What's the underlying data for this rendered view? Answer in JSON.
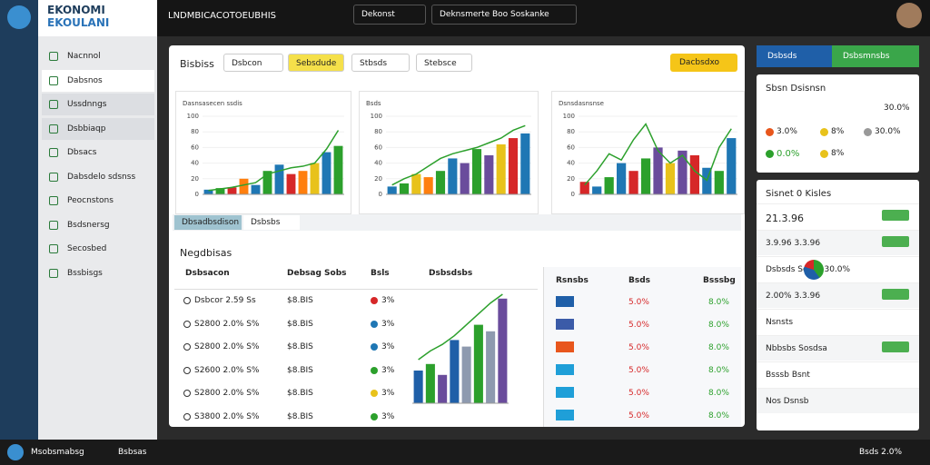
{
  "top": {
    "logo": "EKONOMI",
    "logo_sub": "EKOULANI",
    "title": "LNDMBICACOTOEUBHIS",
    "menu1": "Dekonst",
    "menu2": "Deknsmerte Boo Soskanke"
  },
  "sidebar": [
    "Nacnnol",
    "Dabsnos",
    "Ussdnngs",
    "Dsbbiaqp",
    "Dbsacs",
    "Dabsdelo sdsnss",
    "Peocnstons",
    "Bsdsnersg",
    "Secosbed",
    "Bssbisgs"
  ],
  "toolbar": {
    "title": "Bisbiss",
    "filters": [
      "Dsbcon",
      "Sebsdude",
      "Stbsds",
      "Stebsce"
    ],
    "action": "Dacbsdxo"
  },
  "charts": [
    {
      "title": "Dasnsasecen ssdis",
      "ylim": [
        0,
        100
      ],
      "yticks": [
        0,
        20,
        40,
        60,
        80,
        100
      ],
      "values": [
        6,
        8,
        9,
        20,
        12,
        30,
        38,
        26,
        30,
        40,
        54,
        62
      ],
      "colors": [
        "#1f77b4",
        "#2ca02c",
        "#d62728",
        "#ff7f0e",
        "#1f77b4",
        "#2ca02c",
        "#1f77b4",
        "#d62728",
        "#ff7f0e",
        "#e8c21b",
        "#1f77b4",
        "#2ca02c"
      ],
      "line": [
        5,
        7,
        9,
        12,
        15,
        26,
        30,
        34,
        36,
        40,
        58,
        82
      ]
    },
    {
      "title": "Bsds",
      "ylim": [
        0,
        100
      ],
      "yticks": [
        0,
        20,
        40,
        60,
        80,
        100
      ],
      "values": [
        10,
        14,
        26,
        22,
        30,
        46,
        40,
        58,
        50,
        64,
        72,
        78
      ],
      "colors": [
        "#1f77b4",
        "#2ca02c",
        "#e8c21b",
        "#ff7f0e",
        "#2ca02c",
        "#1f77b4",
        "#6a4c9c",
        "#2ca02c",
        "#6a4c9c",
        "#e8c21b",
        "#d62728",
        "#1f77b4"
      ],
      "line": [
        12,
        20,
        26,
        36,
        46,
        52,
        56,
        60,
        66,
        72,
        82,
        88
      ]
    },
    {
      "title": "Dsnsdasnsnse",
      "ylim": [
        0,
        100
      ],
      "yticks": [
        0,
        20,
        40,
        60,
        80,
        100
      ],
      "values": [
        16,
        10,
        22,
        40,
        30,
        46,
        60,
        40,
        56,
        50,
        34,
        30,
        72
      ],
      "colors": [
        "#d62728",
        "#1f77b4",
        "#2ca02c",
        "#1f77b4",
        "#d62728",
        "#2ca02c",
        "#6a4c9c",
        "#e8c21b",
        "#6a4c9c",
        "#d62728",
        "#1f77b4",
        "#2ca02c",
        "#1f77b4"
      ],
      "line": [
        12,
        30,
        52,
        44,
        70,
        90,
        56,
        40,
        50,
        30,
        18,
        60,
        84
      ]
    },
    {
      "title": "",
      "ylim": [
        0,
        100
      ],
      "yticks": [],
      "values": [
        30,
        36,
        26,
        58,
        52,
        72,
        66,
        96
      ],
      "colors": [
        "#1f5fa8",
        "#2ca02c",
        "#6a4c9c",
        "#1f5fa8",
        "#8e9aaf",
        "#2ca02c",
        "#8e9aaf",
        "#6a4c9c"
      ],
      "line": [
        40,
        48,
        54,
        62,
        72,
        82,
        92,
        100
      ]
    }
  ],
  "tabs": [
    "Dbsadbsdison",
    "Dsbsbs"
  ],
  "table": {
    "title": "Negdbisas",
    "columns": [
      "Dsbsacon",
      "Debsag Sobs",
      "Bsls",
      "Dsbsdsbs"
    ],
    "rows": [
      [
        "Dsbcor 2.59 Ss",
        "$8.BIS",
        "3%"
      ],
      [
        "S2800 2.0% S%",
        "$8.BIS",
        "3%"
      ],
      [
        "S2800 2.0% S%",
        "$8.BIS",
        "3%"
      ],
      [
        "S2600 2.0% S%",
        "$8.BIS",
        "3%"
      ],
      [
        "S2800 2.0% S%",
        "$8.BIS",
        "3%"
      ],
      [
        "S3800 2.0% S%",
        "$8.BIS",
        "3%"
      ]
    ],
    "dot_colors": [
      "#d62728",
      "#1f77b4",
      "#1f77b4",
      "#2ca02c",
      "#e8c21b",
      "#2ca02c"
    ]
  },
  "summary": {
    "columns": [
      "Rsnsbs",
      "Bsds",
      "Bsssbg"
    ],
    "rows": [
      [
        "5.0%",
        "8.0%"
      ],
      [
        "5.0%",
        "8.0%"
      ],
      [
        "5.0%",
        "8.0%"
      ],
      [
        "5.0%",
        "8.0%"
      ],
      [
        "5.0%",
        "8.0%"
      ],
      [
        "5.0%",
        "8.0%"
      ]
    ],
    "colors": [
      "#1f5fa8",
      "#3b5ba8",
      "#e8561c",
      "#1f9fd8",
      "#1f9fd8",
      "#1f9fd8"
    ]
  },
  "right": {
    "btn1": "Dsbsds",
    "btn2": "Dsbsmnsbs",
    "card1": {
      "title": "Sbsn Dsisnsn",
      "value": "30.0%",
      "stats": [
        "3.0%",
        "8%",
        "30.0%",
        "0.0%",
        "8%"
      ]
    },
    "card2": {
      "title": "Sisnet 0 Kisles",
      "rows": [
        "21.3.96",
        "3.9.96 3.3.96",
        "Dsbsds Sesbs 30.0%",
        "2.00% 3.3.96",
        "Nsnsts",
        "Nbbsbs Sosdsa",
        "Bsssb Bsnt",
        "Nos Dsnsb"
      ]
    }
  },
  "taskbar": [
    "Msobsmabsg",
    "Bsbsas",
    "Bsds 2.0%"
  ]
}
